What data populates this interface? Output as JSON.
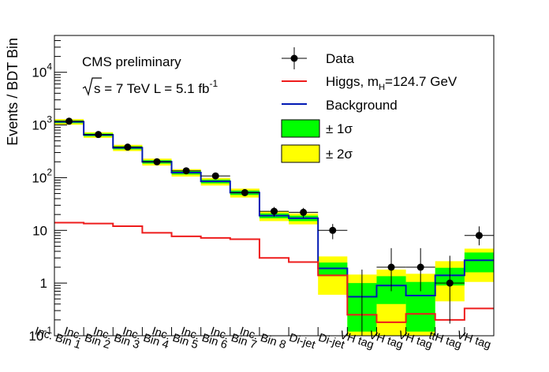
{
  "chart_data": {
    "type": "histogram",
    "ylabel": "Events / BDT Bin",
    "yscale": "log",
    "ylim": [
      0.1,
      50000
    ],
    "categories": [
      "Inc. Bin 1",
      "Inc. Bin 2",
      "Inc. Bin 3",
      "Inc. Bin 4",
      "Inc. Bin 5",
      "Inc. Bin 6",
      "Inc. Bin 7",
      "Inc. Bin 8",
      "Di-jet",
      "Di-jet",
      "VH tag",
      "VH tag",
      "VH tag",
      "ttH tag",
      "VH tag"
    ],
    "background": [
      1150,
      650,
      370,
      200,
      125,
      85,
      52,
      19,
      17,
      1.9,
      0.55,
      0.9,
      0.58,
      1.4,
      2.7
    ],
    "background_1sigma": [
      [
        1080,
        1220
      ],
      [
        610,
        690
      ],
      [
        345,
        395
      ],
      [
        185,
        215
      ],
      [
        115,
        135
      ],
      [
        78,
        92
      ],
      [
        47,
        57
      ],
      [
        17,
        21
      ],
      [
        15,
        19
      ],
      [
        1.35,
        2.45
      ],
      [
        0.12,
        1.0
      ],
      [
        0.4,
        1.35
      ],
      [
        0.12,
        1.05
      ],
      [
        0.9,
        1.95
      ],
      [
        1.6,
        3.8
      ]
    ],
    "background_2sigma": [
      [
        1010,
        1290
      ],
      [
        570,
        730
      ],
      [
        320,
        420
      ],
      [
        170,
        230
      ],
      [
        105,
        145
      ],
      [
        71,
        99
      ],
      [
        42,
        62
      ],
      [
        15,
        23
      ],
      [
        13,
        21
      ],
      [
        0.6,
        3.2
      ],
      [
        0.1,
        1.45
      ],
      [
        0.1,
        1.8
      ],
      [
        0.1,
        1.5
      ],
      [
        0.45,
        2.6
      ],
      [
        1.05,
        4.5
      ]
    ],
    "higgs": [
      14,
      13.5,
      12,
      9,
      7.7,
      7.2,
      6.8,
      3,
      2.5,
      1.4,
      0.25,
      0.18,
      0.26,
      0.2,
      0.33
    ],
    "data": [
      1180,
      660,
      380,
      200,
      135,
      108,
      52,
      23,
      22,
      10,
      0,
      2,
      2,
      1,
      8
    ],
    "data_err_low": [
      35,
      26,
      20,
      14,
      12,
      10,
      7,
      4.8,
      4.7,
      3.2,
      0,
      1.3,
      1.3,
      0.83,
      2.8
    ],
    "data_err_high": [
      35,
      26,
      20,
      14,
      12,
      10,
      7,
      4.8,
      4.7,
      3.2,
      1.8,
      2.6,
      2.6,
      2.3,
      3.9
    ],
    "y_tick_labels": [
      "10^-1",
      "1",
      "10",
      "10^2",
      "10^3",
      "10^4"
    ],
    "y_tick_values": [
      0.1,
      1,
      10,
      100,
      1000,
      10000
    ],
    "legend": {
      "data": "Data",
      "higgs_prefix": "Higgs, m",
      "higgs_sub": "H",
      "higgs_suffix": "=124.7 GeV",
      "background": "Background",
      "band1": "± 1σ",
      "band2": "± 2σ"
    },
    "annotation": {
      "experiment": "CMS preliminary",
      "sqrt_s": "s",
      "energy_text": " = 7 TeV L = 5.1 fb",
      "lumi_exp": "-1"
    },
    "colors": {
      "background_line": "#0018b4",
      "higgs_line": "#ee1c1c",
      "band1": "#00ff00",
      "band2": "#ffff00",
      "data": "#000000"
    }
  }
}
